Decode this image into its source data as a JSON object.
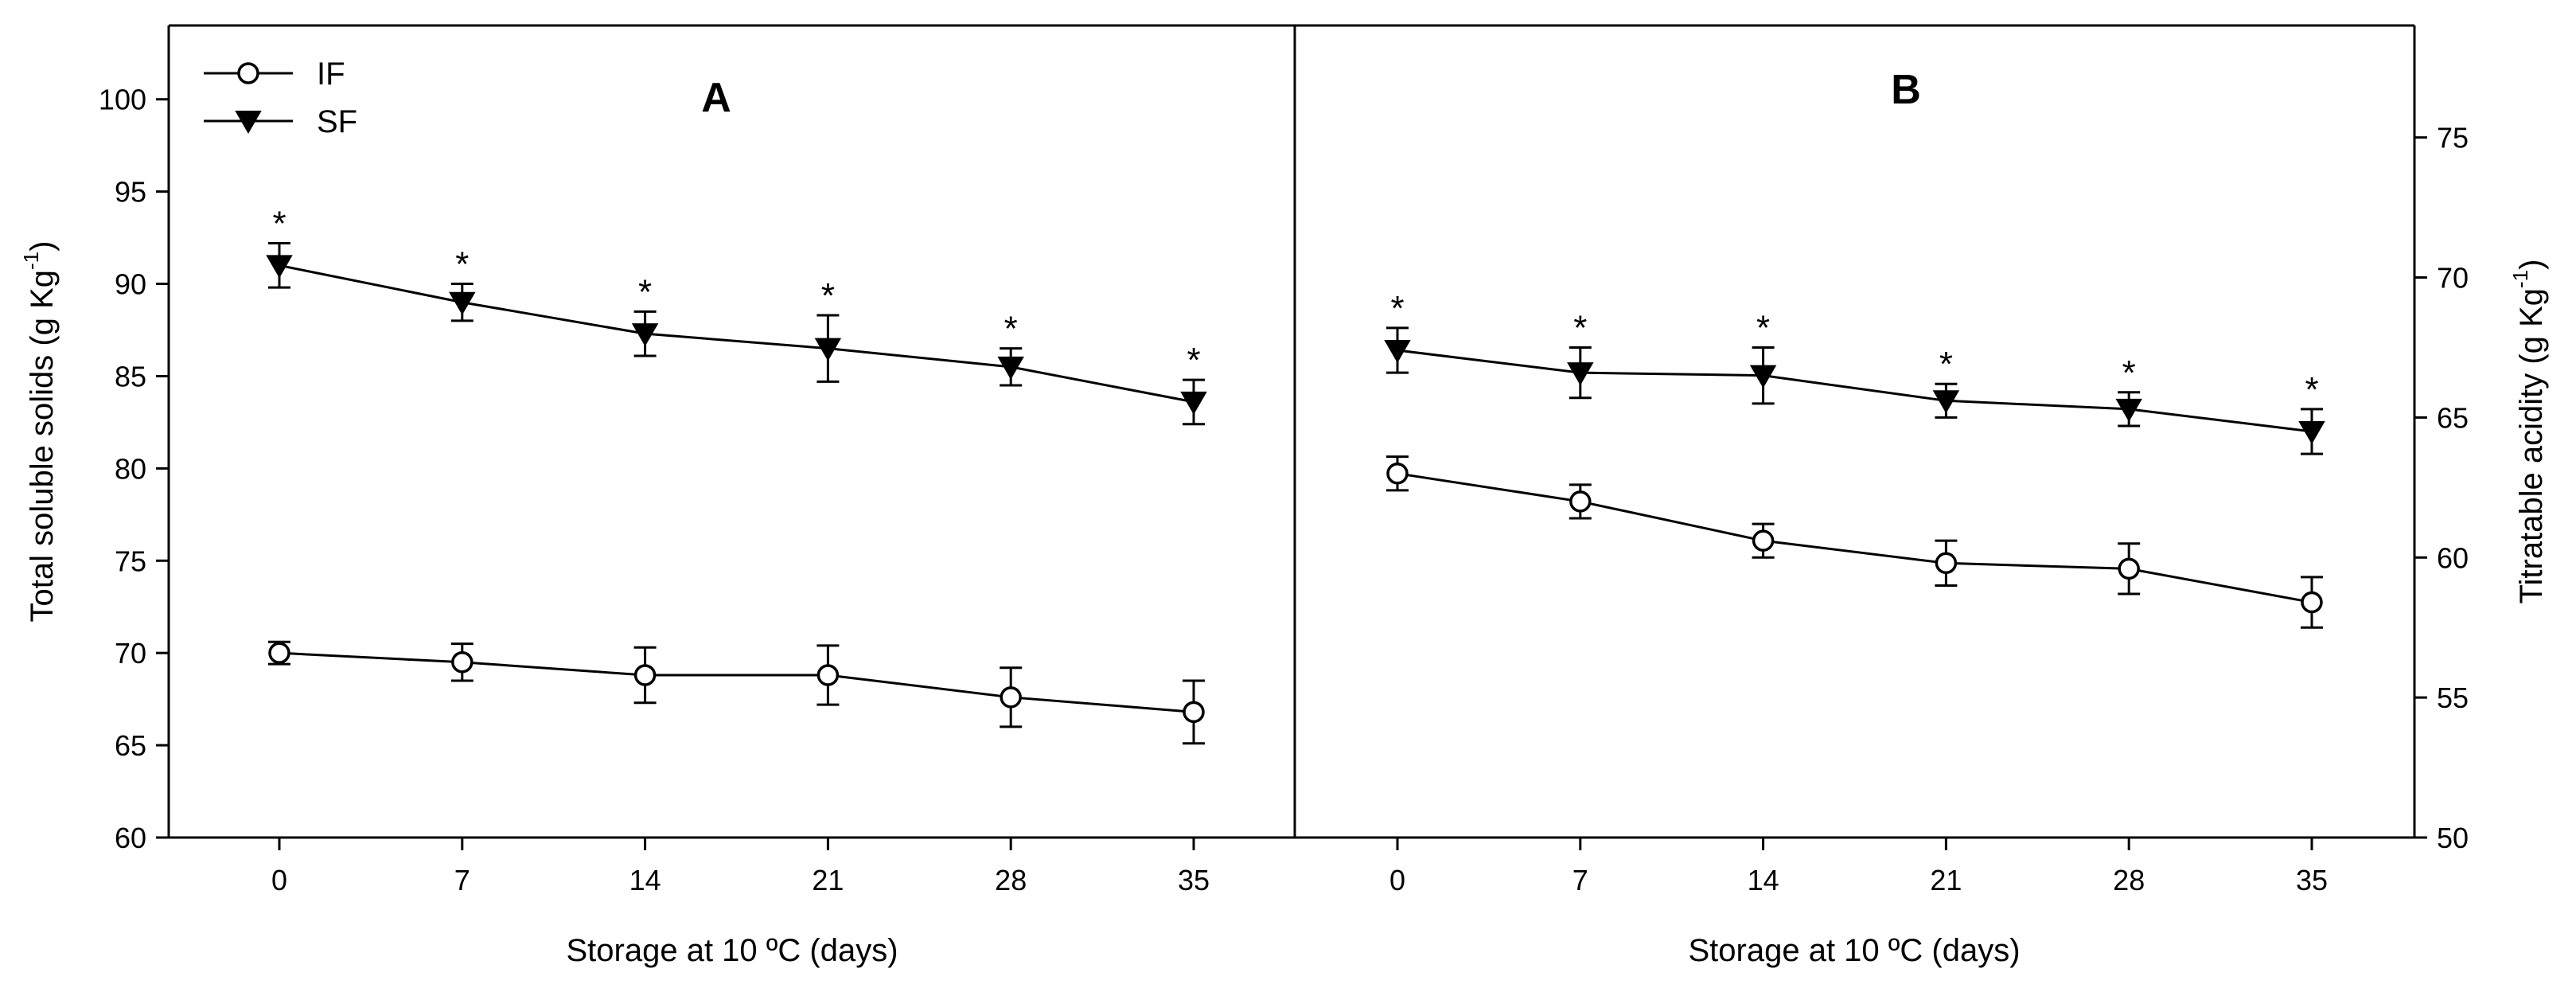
{
  "chart_data": [
    {
      "type": "line",
      "panel_label": "A",
      "x": [
        0,
        7,
        14,
        21,
        28,
        35
      ],
      "tick_labels": [
        "0",
        "7",
        "14",
        "21",
        "28",
        "35"
      ],
      "xlabel": "Storage at 10 ºC (days)",
      "ylabel": "Total soluble solids (g Kg",
      "ylabel_sup": "-1",
      "ylabel_close": ")",
      "ylim": [
        60,
        104
      ],
      "yticks": [
        "60",
        "65",
        "70",
        "75",
        "80",
        "85",
        "90",
        "95",
        "100"
      ],
      "series": [
        {
          "name": "IF",
          "marker": "open-circle",
          "values": [
            70.0,
            69.5,
            68.8,
            68.8,
            67.6,
            66.8
          ],
          "errors": [
            0.6,
            1.0,
            1.5,
            1.6,
            1.6,
            1.7
          ],
          "significance": [
            "",
            "",
            "",
            "",
            "",
            ""
          ]
        },
        {
          "name": "SF",
          "marker": "filled-triangle-down",
          "values": [
            91.0,
            89.0,
            87.3,
            86.5,
            85.5,
            83.6
          ],
          "errors": [
            1.2,
            1.0,
            1.2,
            1.8,
            1.0,
            1.2
          ],
          "significance": [
            "*",
            "*",
            "*",
            "*",
            "*",
            "*"
          ]
        }
      ],
      "legend": {
        "position": "top-left",
        "entries": [
          "IF",
          "SF"
        ]
      }
    },
    {
      "type": "line",
      "panel_label": "B",
      "x": [
        0,
        7,
        14,
        21,
        28,
        35
      ],
      "tick_labels": [
        "0",
        "7",
        "14",
        "21",
        "28",
        "35"
      ],
      "xlabel": "Storage at 10 ºC (days)",
      "ylabel": "Titratable acidity (g Kg",
      "ylabel_sup": "-1",
      "ylabel_close": ")",
      "ylim": [
        50,
        79
      ],
      "yticks": [
        "50",
        "55",
        "60",
        "65",
        "70",
        "75"
      ],
      "series": [
        {
          "name": "IF",
          "marker": "open-circle",
          "values": [
            63.0,
            62.0,
            60.6,
            59.8,
            59.6,
            58.4
          ],
          "errors": [
            0.6,
            0.6,
            0.6,
            0.8,
            0.9,
            0.9
          ],
          "significance": [
            "",
            "",
            "",
            "",
            "",
            ""
          ]
        },
        {
          "name": "SF",
          "marker": "filled-triangle-down",
          "values": [
            67.4,
            66.6,
            66.5,
            65.6,
            65.3,
            64.5
          ],
          "errors": [
            0.8,
            0.9,
            1.0,
            0.6,
            0.6,
            0.8
          ],
          "significance": [
            "*",
            "*",
            "*",
            "*",
            "*",
            "*"
          ]
        }
      ]
    }
  ]
}
